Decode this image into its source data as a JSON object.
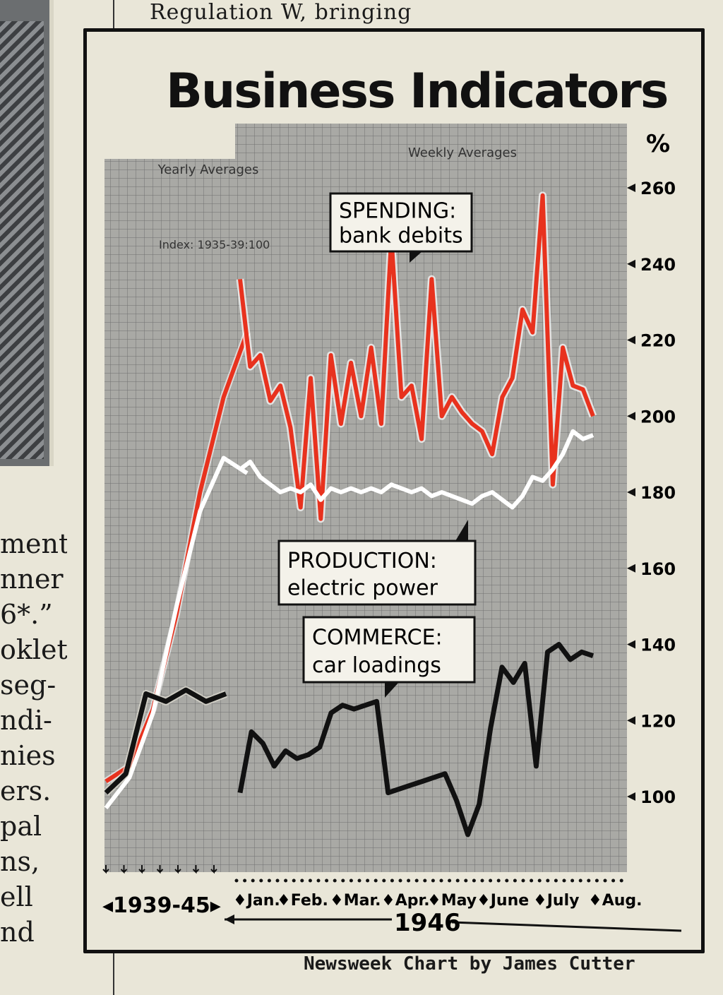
{
  "page": {
    "top_text": "Regulation W, bringing",
    "left_fragments": [
      "ment",
      "nner",
      "6*.”",
      "oklet",
      "seg-",
      "ndi-",
      "nies",
      "ers.",
      "pal",
      "",
      "ns,",
      "ell",
      "nd"
    ],
    "credit": "Newsweek Chart by James Cutter"
  },
  "colors": {
    "spending": "#e8321e",
    "production": "#ffffff",
    "commerce": "#111111",
    "panel": "#a9a9a5"
  },
  "chart_data": {
    "type": "line",
    "title": "Business Indicators",
    "ylabel": "%",
    "index_note": "Index: 1935-39:100",
    "yearly_label": "Yearly Averages",
    "weekly_label": "Weekly Averages",
    "yticks": [
      100,
      120,
      140,
      160,
      180,
      200,
      220,
      240,
      260
    ],
    "ylim": [
      85,
      265
    ],
    "yearly_x": [
      "1939",
      "1940",
      "1941",
      "1942",
      "1943",
      "1944",
      "1945"
    ],
    "yearly_xlabel": "1939-45",
    "months": [
      "Jan.",
      "Feb.",
      "Mar.",
      "Apr.",
      "May",
      "June",
      "July",
      "Aug."
    ],
    "year_label": "1946",
    "labels": {
      "spending": [
        "SPENDING:",
        "bank debits"
      ],
      "production": [
        "PRODUCTION:",
        "electric power"
      ],
      "commerce": [
        "COMMERCE:",
        "car loadings"
      ]
    },
    "series": [
      {
        "name": "SPENDING: bank debits",
        "yearly": [
          104,
          108,
          123,
          148,
          180,
          205,
          222
        ],
        "weekly": [
          236,
          213,
          216,
          204,
          208,
          197,
          176,
          210,
          173,
          216,
          198,
          214,
          200,
          218,
          198,
          247,
          205,
          208,
          194,
          236,
          200,
          205,
          201,
          198,
          196,
          190,
          205,
          210,
          228,
          222,
          258,
          182,
          218,
          208,
          207,
          200
        ]
      },
      {
        "name": "PRODUCTION: electric power",
        "yearly": [
          97,
          105,
          122,
          150,
          175,
          189,
          185
        ],
        "weekly": [
          186,
          188,
          184,
          182,
          180,
          181,
          180,
          182,
          178,
          181,
          180,
          181,
          180,
          181,
          180,
          182,
          181,
          180,
          181,
          179,
          180,
          179,
          178,
          177,
          179,
          180,
          178,
          176,
          179,
          184,
          183,
          186,
          190,
          196,
          194,
          195
        ]
      },
      {
        "name": "COMMERCE: car loadings",
        "yearly": [
          101,
          106,
          127,
          125,
          128,
          125,
          127
        ],
        "weekly": [
          101,
          117,
          114,
          108,
          112,
          110,
          111,
          113,
          122,
          124,
          123,
          124,
          125,
          101,
          102,
          103,
          104,
          105,
          106,
          99,
          90,
          98,
          118,
          134,
          130,
          135,
          108,
          138,
          140,
          136,
          138,
          137
        ]
      }
    ]
  }
}
